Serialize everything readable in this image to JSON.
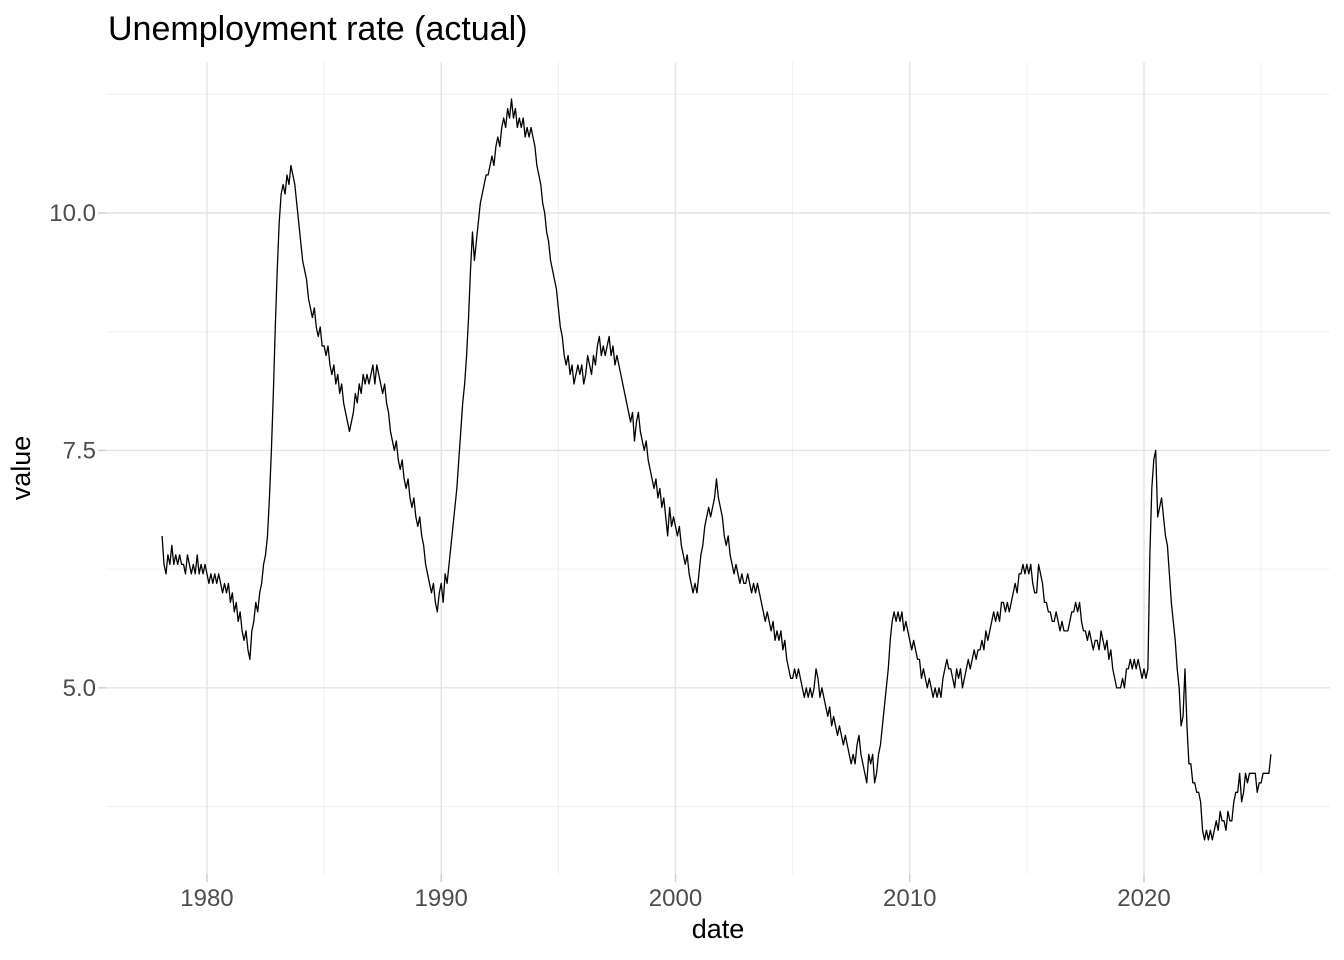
{
  "chart_data": {
    "type": "line",
    "title": "Unemployment rate (actual)",
    "xlabel": "date",
    "ylabel": "value",
    "line_color": "#000000",
    "grid": "on",
    "legend": "none",
    "x_ticks": [
      {
        "v": 1980,
        "label": "1980"
      },
      {
        "v": 1990,
        "label": "1990"
      },
      {
        "v": 2000,
        "label": "2000"
      },
      {
        "v": 2010,
        "label": "2010"
      },
      {
        "v": 2020,
        "label": "2020"
      }
    ],
    "y_ticks": [
      {
        "v": 5.0,
        "label": "5.0"
      },
      {
        "v": 7.5,
        "label": "7.5"
      },
      {
        "v": 10.0,
        "label": "10.0"
      }
    ],
    "x_minor_ticks": [
      1985,
      1995,
      2005,
      2015,
      2025
    ],
    "y_minor_ticks": [
      3.75,
      6.25,
      8.75,
      11.25
    ],
    "x_range": [
      1975.69,
      2027.94
    ],
    "y_range": [
      3.04,
      11.59
    ],
    "series": [
      {
        "name": "value",
        "start_year": 1978,
        "start_month": 2,
        "frequency": "monthly",
        "values": [
          6.6,
          6.3,
          6.2,
          6.4,
          6.3,
          6.5,
          6.3,
          6.4,
          6.3,
          6.4,
          6.3,
          6.3,
          6.2,
          6.4,
          6.3,
          6.2,
          6.3,
          6.2,
          6.4,
          6.2,
          6.3,
          6.2,
          6.3,
          6.2,
          6.1,
          6.2,
          6.1,
          6.2,
          6.1,
          6.2,
          6.1,
          6.0,
          6.1,
          6.0,
          6.1,
          5.9,
          6.0,
          5.8,
          5.9,
          5.7,
          5.8,
          5.6,
          5.5,
          5.6,
          5.4,
          5.3,
          5.6,
          5.7,
          5.9,
          5.8,
          6.0,
          6.1,
          6.3,
          6.4,
          6.6,
          7.0,
          7.5,
          8.1,
          8.8,
          9.4,
          9.9,
          10.2,
          10.3,
          10.2,
          10.4,
          10.3,
          10.5,
          10.4,
          10.3,
          10.1,
          9.9,
          9.7,
          9.5,
          9.4,
          9.3,
          9.1,
          9.0,
          8.9,
          9.0,
          8.8,
          8.7,
          8.8,
          8.6,
          8.6,
          8.5,
          8.6,
          8.4,
          8.3,
          8.4,
          8.2,
          8.3,
          8.1,
          8.2,
          8.0,
          7.9,
          7.8,
          7.7,
          7.8,
          7.9,
          8.1,
          8.0,
          8.2,
          8.1,
          8.3,
          8.2,
          8.3,
          8.2,
          8.3,
          8.4,
          8.2,
          8.4,
          8.3,
          8.2,
          8.1,
          8.2,
          8.0,
          7.9,
          7.7,
          7.6,
          7.5,
          7.6,
          7.4,
          7.3,
          7.4,
          7.2,
          7.1,
          7.2,
          7.0,
          6.9,
          7.0,
          6.8,
          6.7,
          6.8,
          6.6,
          6.5,
          6.3,
          6.2,
          6.1,
          6.0,
          6.1,
          5.9,
          5.8,
          6.0,
          6.1,
          5.9,
          6.2,
          6.1,
          6.3,
          6.5,
          6.7,
          6.9,
          7.1,
          7.4,
          7.7,
          8.0,
          8.2,
          8.5,
          8.9,
          9.4,
          9.8,
          9.5,
          9.7,
          9.9,
          10.1,
          10.2,
          10.3,
          10.4,
          10.4,
          10.5,
          10.6,
          10.5,
          10.7,
          10.8,
          10.7,
          10.9,
          11.0,
          10.9,
          11.1,
          11.0,
          11.2,
          11.0,
          11.1,
          10.9,
          11.0,
          10.9,
          11.0,
          10.8,
          10.9,
          10.8,
          10.9,
          10.8,
          10.7,
          10.5,
          10.4,
          10.3,
          10.1,
          10.0,
          9.8,
          9.7,
          9.5,
          9.4,
          9.3,
          9.2,
          9.0,
          8.8,
          8.7,
          8.5,
          8.4,
          8.5,
          8.3,
          8.4,
          8.2,
          8.3,
          8.4,
          8.3,
          8.4,
          8.2,
          8.3,
          8.5,
          8.4,
          8.3,
          8.5,
          8.4,
          8.6,
          8.7,
          8.5,
          8.6,
          8.5,
          8.6,
          8.7,
          8.5,
          8.6,
          8.4,
          8.5,
          8.4,
          8.3,
          8.2,
          8.1,
          8.0,
          7.9,
          7.8,
          7.9,
          7.6,
          7.8,
          7.9,
          7.7,
          7.6,
          7.5,
          7.6,
          7.4,
          7.3,
          7.2,
          7.1,
          7.2,
          7.0,
          7.1,
          6.9,
          7.0,
          6.8,
          6.6,
          6.9,
          6.7,
          6.8,
          6.7,
          6.6,
          6.7,
          6.5,
          6.4,
          6.3,
          6.4,
          6.2,
          6.1,
          6.0,
          6.1,
          6.0,
          6.2,
          6.4,
          6.5,
          6.7,
          6.8,
          6.9,
          6.8,
          6.9,
          7.0,
          7.2,
          7.0,
          6.9,
          6.8,
          6.6,
          6.5,
          6.6,
          6.4,
          6.3,
          6.2,
          6.3,
          6.2,
          6.1,
          6.2,
          6.1,
          6.1,
          6.2,
          6.1,
          6.0,
          6.1,
          6.0,
          6.1,
          6.0,
          5.9,
          5.8,
          5.7,
          5.8,
          5.7,
          5.6,
          5.7,
          5.5,
          5.6,
          5.5,
          5.6,
          5.4,
          5.5,
          5.3,
          5.2,
          5.1,
          5.1,
          5.2,
          5.1,
          5.2,
          5.1,
          5.0,
          4.9,
          5.0,
          4.9,
          5.0,
          4.9,
          5.0,
          5.2,
          5.1,
          4.9,
          5.0,
          4.9,
          4.8,
          4.7,
          4.8,
          4.6,
          4.7,
          4.6,
          4.5,
          4.6,
          4.5,
          4.4,
          4.5,
          4.4,
          4.3,
          4.2,
          4.3,
          4.2,
          4.4,
          4.5,
          4.3,
          4.2,
          4.1,
          4.0,
          4.3,
          4.2,
          4.3,
          4.0,
          4.1,
          4.3,
          4.4,
          4.6,
          4.8,
          5.0,
          5.2,
          5.5,
          5.7,
          5.8,
          5.7,
          5.8,
          5.7,
          5.8,
          5.6,
          5.7,
          5.6,
          5.5,
          5.4,
          5.5,
          5.4,
          5.3,
          5.3,
          5.1,
          5.2,
          5.1,
          5.0,
          5.1,
          5.0,
          4.9,
          5.0,
          4.9,
          5.0,
          4.9,
          5.1,
          5.2,
          5.3,
          5.2,
          5.2,
          5.1,
          5.0,
          5.2,
          5.1,
          5.2,
          5.0,
          5.1,
          5.2,
          5.3,
          5.2,
          5.3,
          5.4,
          5.3,
          5.4,
          5.4,
          5.5,
          5.4,
          5.6,
          5.5,
          5.6,
          5.7,
          5.8,
          5.7,
          5.8,
          5.7,
          5.9,
          5.9,
          5.8,
          5.9,
          5.8,
          5.9,
          6.0,
          6.1,
          6.0,
          6.2,
          6.2,
          6.3,
          6.2,
          6.3,
          6.2,
          6.3,
          6.1,
          6.0,
          6.0,
          6.3,
          6.2,
          6.1,
          5.9,
          5.9,
          5.8,
          5.8,
          5.7,
          5.7,
          5.8,
          5.7,
          5.6,
          5.7,
          5.6,
          5.6,
          5.6,
          5.7,
          5.8,
          5.8,
          5.9,
          5.8,
          5.9,
          5.7,
          5.6,
          5.6,
          5.5,
          5.6,
          5.5,
          5.4,
          5.5,
          5.5,
          5.4,
          5.6,
          5.5,
          5.4,
          5.5,
          5.3,
          5.4,
          5.2,
          5.1,
          5.0,
          5.0,
          5.0,
          5.1,
          5.0,
          5.2,
          5.2,
          5.3,
          5.2,
          5.3,
          5.2,
          5.3,
          5.2,
          5.1,
          5.2,
          5.1,
          5.2,
          6.4,
          7.1,
          7.4,
          7.5,
          6.8,
          6.9,
          7.0,
          6.8,
          6.6,
          6.5,
          6.2,
          5.9,
          5.7,
          5.5,
          5.2,
          5.0,
          4.6,
          4.7,
          5.2,
          4.6,
          4.2,
          4.2,
          4.0,
          4.0,
          3.9,
          3.9,
          3.8,
          3.5,
          3.4,
          3.5,
          3.4,
          3.5,
          3.4,
          3.5,
          3.6,
          3.5,
          3.7,
          3.6,
          3.6,
          3.5,
          3.7,
          3.6,
          3.6,
          3.8,
          3.9,
          3.9,
          4.1,
          3.8,
          3.9,
          4.1,
          4.0,
          4.1,
          4.1,
          4.1,
          4.1,
          3.9,
          4.0,
          4.0,
          4.1,
          4.1,
          4.1,
          4.1,
          4.3
        ]
      }
    ]
  }
}
